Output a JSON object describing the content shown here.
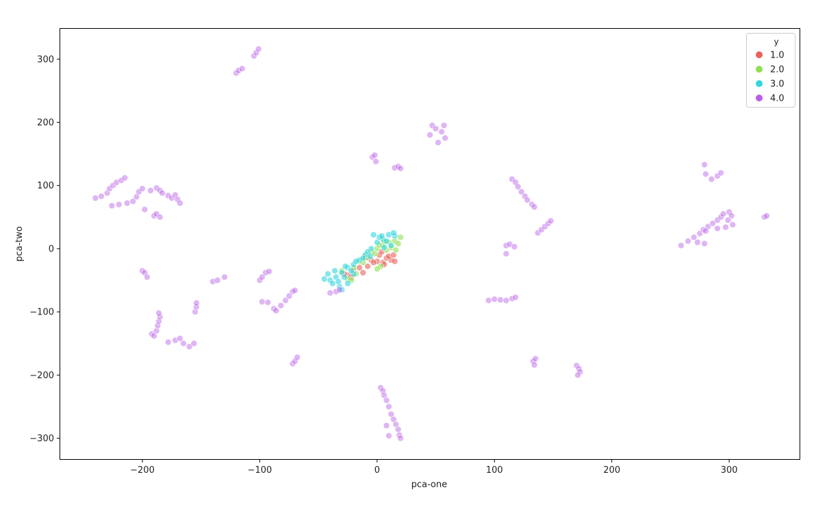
{
  "chart_data": {
    "type": "scatter",
    "title": "",
    "xlabel": "pca-one",
    "ylabel": "pca-two",
    "xlim": [
      -270,
      360
    ],
    "ylim": [
      -333,
      348
    ],
    "xticks": [
      -200,
      -100,
      0,
      100,
      200,
      300
    ],
    "yticks": [
      -300,
      -200,
      -100,
      0,
      100,
      200,
      300
    ],
    "xtick_labels": [
      "−200",
      "−100",
      "0",
      "100",
      "200",
      "300"
    ],
    "ytick_labels": [
      "−300",
      "−200",
      "−100",
      "0",
      "100",
      "200",
      "300"
    ],
    "grid": false,
    "legend": {
      "title": "y",
      "placement": "top-right",
      "entries": [
        "1.0",
        "2.0",
        "3.0",
        "4.0"
      ]
    },
    "colors": {
      "1.0": "#e8625a",
      "2.0": "#8fdf55",
      "3.0": "#33d6de",
      "4.0": "#b95ee6"
    },
    "series": [
      {
        "name": "1.0",
        "points": [
          [
            -10,
            -15
          ],
          [
            -5,
            -18
          ],
          [
            0,
            -20
          ],
          [
            5,
            -22
          ],
          [
            8,
            -15
          ],
          [
            12,
            -18
          ],
          [
            15,
            -20
          ],
          [
            -15,
            -30
          ],
          [
            -20,
            -35
          ],
          [
            -25,
            -42
          ],
          [
            -22,
            -45
          ],
          [
            2,
            -10
          ],
          [
            6,
            -25
          ],
          [
            10,
            -12
          ],
          [
            -8,
            -28
          ],
          [
            -12,
            -38
          ],
          [
            -28,
            -40
          ],
          [
            4,
            -5
          ],
          [
            14,
            -10
          ],
          [
            -3,
            -22
          ]
        ]
      },
      {
        "name": "2.0",
        "points": [
          [
            -20,
            -30
          ],
          [
            -15,
            -20
          ],
          [
            -10,
            -10
          ],
          [
            -5,
            -5
          ],
          [
            0,
            0
          ],
          [
            5,
            5
          ],
          [
            10,
            10
          ],
          [
            15,
            12
          ],
          [
            20,
            18
          ],
          [
            18,
            8
          ],
          [
            3,
            -28
          ],
          [
            0,
            -32
          ],
          [
            -25,
            -48
          ],
          [
            -22,
            -50
          ],
          [
            -30,
            -35
          ],
          [
            -12,
            -22
          ],
          [
            8,
            -2
          ],
          [
            12,
            2
          ],
          [
            -18,
            -40
          ],
          [
            6,
            12
          ],
          [
            16,
            -2
          ],
          [
            -8,
            -14
          ],
          [
            2,
            6
          ],
          [
            -2,
            -8
          ]
        ]
      },
      {
        "name": "3.0",
        "points": [
          [
            -45,
            -48
          ],
          [
            -40,
            -50
          ],
          [
            -35,
            -45
          ],
          [
            -30,
            -38
          ],
          [
            -28,
            -45
          ],
          [
            -25,
            -30
          ],
          [
            -20,
            -25
          ],
          [
            -15,
            -18
          ],
          [
            -10,
            -10
          ],
          [
            -5,
            0
          ],
          [
            0,
            10
          ],
          [
            5,
            15
          ],
          [
            10,
            22
          ],
          [
            15,
            20
          ],
          [
            -38,
            -55
          ],
          [
            -32,
            -60
          ],
          [
            -30,
            -65
          ],
          [
            -25,
            -55
          ],
          [
            -20,
            -40
          ],
          [
            -18,
            -20
          ],
          [
            -8,
            -5
          ],
          [
            2,
            18
          ],
          [
            8,
            12
          ],
          [
            12,
            5
          ],
          [
            -42,
            -40
          ],
          [
            -36,
            -35
          ],
          [
            -12,
            -15
          ],
          [
            -3,
            22
          ],
          [
            14,
            25
          ],
          [
            6,
            2
          ],
          [
            -22,
            -35
          ],
          [
            -33,
            -52
          ],
          [
            -6,
            -12
          ],
          [
            4,
            20
          ],
          [
            -27,
            -28
          ]
        ]
      },
      {
        "name": "4.0",
        "points": [
          [
            -240,
            80
          ],
          [
            -235,
            83
          ],
          [
            -230,
            88
          ],
          [
            -228,
            95
          ],
          [
            -225,
            100
          ],
          [
            -222,
            105
          ],
          [
            -218,
            108
          ],
          [
            -215,
            112
          ],
          [
            -226,
            68
          ],
          [
            -220,
            70
          ],
          [
            -213,
            72
          ],
          [
            -208,
            75
          ],
          [
            -205,
            82
          ],
          [
            -203,
            90
          ],
          [
            -200,
            95
          ],
          [
            -198,
            62
          ],
          [
            -193,
            92
          ],
          [
            -188,
            96
          ],
          [
            -185,
            92
          ],
          [
            -183,
            88
          ],
          [
            -178,
            84
          ],
          [
            -175,
            80
          ],
          [
            -172,
            85
          ],
          [
            -170,
            78
          ],
          [
            -168,
            72
          ],
          [
            -190,
            52
          ],
          [
            -188,
            55
          ],
          [
            -185,
            50
          ],
          [
            -200,
            -35
          ],
          [
            -198,
            -38
          ],
          [
            -196,
            -45
          ],
          [
            -192,
            -135
          ],
          [
            -190,
            -138
          ],
          [
            -188,
            -130
          ],
          [
            -187,
            -122
          ],
          [
            -186,
            -115
          ],
          [
            -185,
            -108
          ],
          [
            -186,
            -102
          ],
          [
            -178,
            -148
          ],
          [
            -172,
            -145
          ],
          [
            -168,
            -142
          ],
          [
            -165,
            -150
          ],
          [
            -160,
            -155
          ],
          [
            -156,
            -150
          ],
          [
            -155,
            -100
          ],
          [
            -154,
            -92
          ],
          [
            -154,
            -86
          ],
          [
            -140,
            -52
          ],
          [
            -136,
            -50
          ],
          [
            -130,
            -45
          ],
          [
            -120,
            278
          ],
          [
            -118,
            282
          ],
          [
            -115,
            285
          ],
          [
            -105,
            305
          ],
          [
            -103,
            310
          ],
          [
            -101,
            316
          ],
          [
            -100,
            -50
          ],
          [
            -98,
            -45
          ],
          [
            -95,
            -38
          ],
          [
            -92,
            -36
          ],
          [
            -98,
            -84
          ],
          [
            -93,
            -85
          ],
          [
            -88,
            -95
          ],
          [
            -86,
            -98
          ],
          [
            -82,
            -90
          ],
          [
            -78,
            -82
          ],
          [
            -75,
            -75
          ],
          [
            -72,
            -68
          ],
          [
            -70,
            -66
          ],
          [
            -72,
            -182
          ],
          [
            -70,
            -178
          ],
          [
            -68,
            -172
          ],
          [
            -40,
            -70
          ],
          [
            -35,
            -68
          ],
          [
            -32,
            -65
          ],
          [
            -4,
            145
          ],
          [
            -2,
            148
          ],
          [
            -1,
            138
          ],
          [
            15,
            128
          ],
          [
            18,
            130
          ],
          [
            20,
            127
          ],
          [
            3,
            -220
          ],
          [
            5,
            -225
          ],
          [
            6,
            -232
          ],
          [
            8,
            -240
          ],
          [
            10,
            -250
          ],
          [
            12,
            -262
          ],
          [
            14,
            -270
          ],
          [
            16,
            -278
          ],
          [
            18,
            -286
          ],
          [
            19,
            -295
          ],
          [
            20,
            -300
          ],
          [
            10,
            -296
          ],
          [
            8,
            -280
          ],
          [
            45,
            180
          ],
          [
            47,
            195
          ],
          [
            50,
            190
          ],
          [
            52,
            168
          ],
          [
            55,
            185
          ],
          [
            57,
            195
          ],
          [
            58,
            175
          ],
          [
            95,
            -82
          ],
          [
            100,
            -80
          ],
          [
            105,
            -81
          ],
          [
            110,
            -82
          ],
          [
            115,
            -79
          ],
          [
            118,
            -77
          ],
          [
            110,
            5
          ],
          [
            113,
            7
          ],
          [
            117,
            3
          ],
          [
            110,
            -8
          ],
          [
            115,
            110
          ],
          [
            118,
            105
          ],
          [
            120,
            98
          ],
          [
            123,
            90
          ],
          [
            126,
            83
          ],
          [
            128,
            77
          ],
          [
            132,
            70
          ],
          [
            134,
            66
          ],
          [
            137,
            25
          ],
          [
            140,
            30
          ],
          [
            143,
            35
          ],
          [
            146,
            40
          ],
          [
            148,
            44
          ],
          [
            133,
            -178
          ],
          [
            135,
            -174
          ],
          [
            134,
            -184
          ],
          [
            170,
            -185
          ],
          [
            172,
            -190
          ],
          [
            173,
            -195
          ],
          [
            171,
            -200
          ],
          [
            259,
            5
          ],
          [
            265,
            12
          ],
          [
            270,
            18
          ],
          [
            275,
            24
          ],
          [
            278,
            30
          ],
          [
            282,
            35
          ],
          [
            286,
            40
          ],
          [
            290,
            45
          ],
          [
            293,
            50
          ],
          [
            295,
            55
          ],
          [
            300,
            58
          ],
          [
            302,
            52
          ],
          [
            299,
            45
          ],
          [
            303,
            38
          ],
          [
            297,
            34
          ],
          [
            290,
            32
          ],
          [
            280,
            28
          ],
          [
            273,
            10
          ],
          [
            279,
            8
          ],
          [
            285,
            110
          ],
          [
            280,
            118
          ],
          [
            290,
            115
          ],
          [
            293,
            120
          ],
          [
            279,
            133
          ],
          [
            330,
            50
          ],
          [
            332,
            52
          ]
        ]
      }
    ]
  }
}
